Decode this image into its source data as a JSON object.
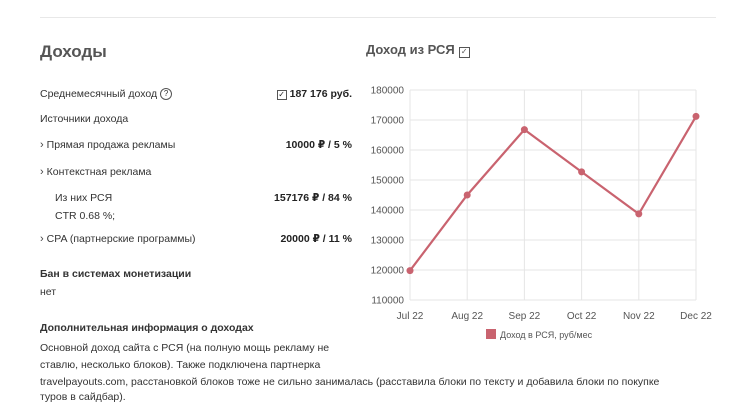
{
  "income": {
    "title": "Доходы",
    "avg_label": "Среднемесячный доход",
    "avg_value": "187 176 руб.",
    "sources_label": "Источники дохода",
    "direct_label": "Прямая продажа рекламы",
    "direct_value": "10000 ₽  / 5 %",
    "context_label": "Контекстная реклама",
    "rsya_label": "Из них РСЯ",
    "rsya_value": "157176 ₽  / 84 %",
    "ctr_label": "CTR 0.68 %;",
    "cpa_label": "CPA (партнерские программы)",
    "cpa_value": "20000 ₽  / 11 %"
  },
  "ban": {
    "heading": "Бан в системах монетизации",
    "value": "нет"
  },
  "extra": {
    "heading": "Дополнительная информация о доходах",
    "line1": "Основной доход сайта с РСЯ (на полную мощь рекламу не",
    "line2": "ставлю, несколько блоков). Также подключена партнерка",
    "line3": "travelpayouts.com, расстановкой блоков тоже не сильно занималась (расставила блоки по тексту и добавила блоки по покупке",
    "line4": "туров в сайдбар)."
  },
  "chart_title": "Доход из РСЯ",
  "colors": {
    "series": "#c9636f",
    "grid": "#e5e5e5"
  },
  "chart_data": {
    "type": "line",
    "title": "Доход из РСЯ",
    "categories": [
      "Jul 22",
      "Aug 22",
      "Sep 22",
      "Oct 22",
      "Nov 22",
      "Dec 22"
    ],
    "series": [
      {
        "name": "Доход в РСЯ, руб/мес",
        "values": [
          119800,
          145000,
          166800,
          152700,
          138700,
          171200
        ]
      }
    ],
    "yticks": [
      "180000",
      "170000",
      "160000",
      "150000",
      "140000",
      "130000",
      "120000",
      "110000"
    ],
    "ylim": [
      110000,
      180000
    ],
    "grid": true,
    "legend": "bottom"
  }
}
